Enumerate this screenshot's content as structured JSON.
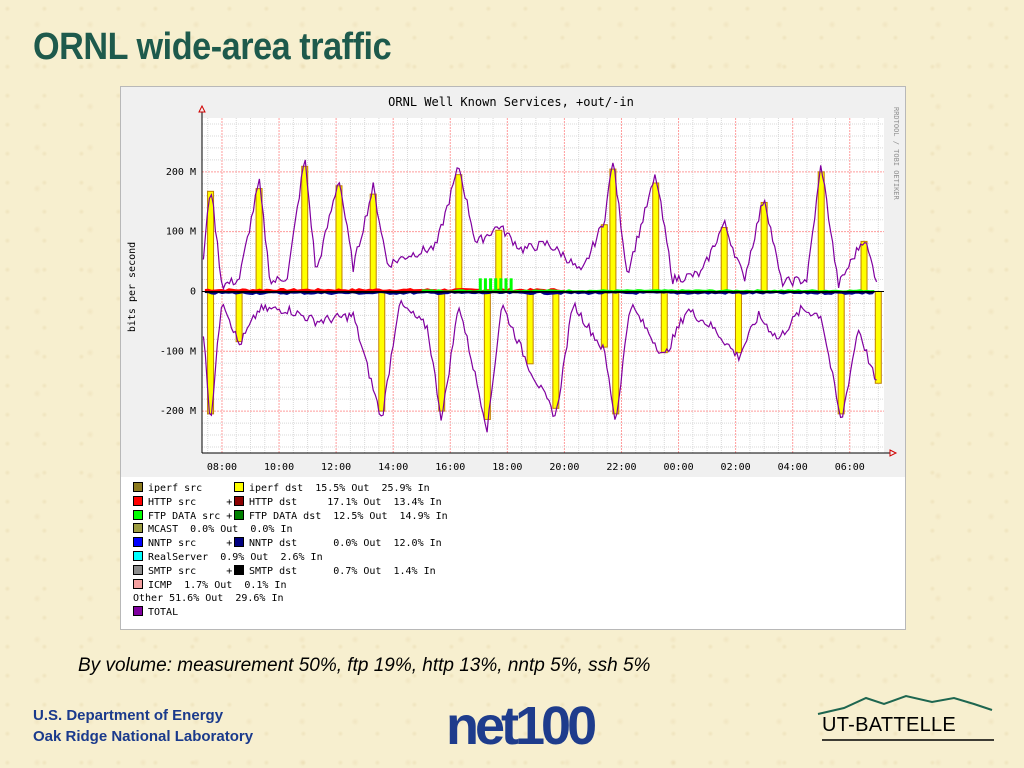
{
  "slide": {
    "title": "ORNL wide-area traffic",
    "caption": "By volume:  measurement 50%, ftp 19%, http 13%, nntp 5%,  ssh 5%",
    "footer_line1": "U.S. Department of Energy",
    "footer_line2": "Oak Ridge National Laboratory",
    "logo_left_text": "net100",
    "logo_right_text": "UT-BATTELLE"
  },
  "chart_data": {
    "type": "area",
    "title": "ORNL Well Known Services, +out/-in",
    "ylabel": "bits per second",
    "side_label": "RRDTOOL / TOBI OETIKER",
    "y_ticks": [
      {
        "v": 200,
        "label": "200 M"
      },
      {
        "v": 100,
        "label": "100 M"
      },
      {
        "v": 0,
        "label": "0"
      },
      {
        "v": -100,
        "label": "-100 M"
      },
      {
        "v": -200,
        "label": "-200 M"
      }
    ],
    "x_ticks": [
      "08:00",
      "10:00",
      "12:00",
      "14:00",
      "16:00",
      "18:00",
      "20:00",
      "22:00",
      "00:00",
      "02:00",
      "04:00",
      "06:00"
    ],
    "ylim": [
      -270,
      290
    ],
    "xlim_hours": [
      7.3,
      31.2
    ],
    "grid": true,
    "colors": {
      "iperf_dst": "#ffff00",
      "iperf_src": "#8c7a1e",
      "http": "#ff0000",
      "ftp": "#00ff00",
      "nntp": "#000090",
      "total": "#8000a0",
      "realserver": "#00ffff",
      "smtp": "#000000",
      "grid_major": "#ff9c9c",
      "grid_minor": "#d8d8d8"
    },
    "total_out_envelope": [
      {
        "t": 7.3,
        "v": 30
      },
      {
        "t": 7.6,
        "v": 180
      },
      {
        "t": 8.0,
        "v": 10
      },
      {
        "t": 8.6,
        "v": 20
      },
      {
        "t": 9.3,
        "v": 185
      },
      {
        "t": 9.7,
        "v": 15
      },
      {
        "t": 10.3,
        "v": 25
      },
      {
        "t": 10.9,
        "v": 225
      },
      {
        "t": 11.3,
        "v": 30
      },
      {
        "t": 12.1,
        "v": 190
      },
      {
        "t": 12.6,
        "v": 40
      },
      {
        "t": 13.3,
        "v": 175
      },
      {
        "t": 13.8,
        "v": 45
      },
      {
        "t": 14.5,
        "v": 60
      },
      {
        "t": 15.5,
        "v": 75
      },
      {
        "t": 16.3,
        "v": 210
      },
      {
        "t": 16.9,
        "v": 80
      },
      {
        "t": 17.7,
        "v": 110
      },
      {
        "t": 18.5,
        "v": 70
      },
      {
        "t": 19.4,
        "v": 80
      },
      {
        "t": 20.0,
        "v": 60
      },
      {
        "t": 20.6,
        "v": 30
      },
      {
        "t": 21.4,
        "v": 120
      },
      {
        "t": 21.7,
        "v": 220
      },
      {
        "t": 22.2,
        "v": 30
      },
      {
        "t": 23.2,
        "v": 195
      },
      {
        "t": 23.8,
        "v": 20
      },
      {
        "t": 24.8,
        "v": 30
      },
      {
        "t": 25.6,
        "v": 115
      },
      {
        "t": 26.3,
        "v": 20
      },
      {
        "t": 27.0,
        "v": 160
      },
      {
        "t": 27.6,
        "v": 15
      },
      {
        "t": 28.5,
        "v": 20
      },
      {
        "t": 29.0,
        "v": 215
      },
      {
        "t": 29.6,
        "v": 10
      },
      {
        "t": 30.5,
        "v": 90
      },
      {
        "t": 31.0,
        "v": 10
      }
    ],
    "total_in_envelope": [
      {
        "t": 7.3,
        "v": -40
      },
      {
        "t": 7.6,
        "v": -220
      },
      {
        "t": 8.0,
        "v": -10
      },
      {
        "t": 8.6,
        "v": -90
      },
      {
        "t": 9.3,
        "v": -30
      },
      {
        "t": 10.3,
        "v": -30
      },
      {
        "t": 11.3,
        "v": -50
      },
      {
        "t": 12.6,
        "v": -40
      },
      {
        "t": 13.6,
        "v": -215
      },
      {
        "t": 14.2,
        "v": -20
      },
      {
        "t": 15.2,
        "v": -60
      },
      {
        "t": 15.7,
        "v": -215
      },
      {
        "t": 16.3,
        "v": -20
      },
      {
        "t": 17.3,
        "v": -230
      },
      {
        "t": 17.8,
        "v": -20
      },
      {
        "t": 18.8,
        "v": -130
      },
      {
        "t": 19.7,
        "v": -210
      },
      {
        "t": 20.3,
        "v": -20
      },
      {
        "t": 21.4,
        "v": -100
      },
      {
        "t": 21.8,
        "v": -220
      },
      {
        "t": 22.3,
        "v": -20
      },
      {
        "t": 23.5,
        "v": -110
      },
      {
        "t": 24.3,
        "v": -30
      },
      {
        "t": 25.2,
        "v": -60
      },
      {
        "t": 26.1,
        "v": -110
      },
      {
        "t": 26.8,
        "v": -40
      },
      {
        "t": 27.5,
        "v": -80
      },
      {
        "t": 28.3,
        "v": -30
      },
      {
        "t": 29.0,
        "v": -40
      },
      {
        "t": 29.7,
        "v": -220
      },
      {
        "t": 30.3,
        "v": -60
      },
      {
        "t": 31.0,
        "v": -165
      }
    ],
    "legend": [
      {
        "swatch": "#8c7a1e",
        "text": "iperf src",
        "swatch2": "#ffff00",
        "text2": "iperf dst  15.5% Out  25.9% In"
      },
      {
        "swatch": "#ff0000",
        "text": "HTTP src     +",
        "swatch2": "#8b0000",
        "text2": "HTTP dst     17.1% Out  13.4% In"
      },
      {
        "swatch": "#00ff00",
        "text": "FTP DATA src +",
        "swatch2": "#008000",
        "text2": "FTP DATA dst  12.5% Out  14.9% In"
      },
      {
        "swatch": "#9c9c40",
        "text": "MCAST  0.0% Out  0.0% In"
      },
      {
        "swatch": "#0000ff",
        "text": "NNTP src     +",
        "swatch2": "#000080",
        "text2": "NNTP dst      0.0% Out  12.0% In"
      },
      {
        "swatch": "#00ffff",
        "text": "RealServer  0.9% Out  2.6% In"
      },
      {
        "swatch": "#8c8c8c",
        "text": "SMTP src     +",
        "swatch2": "#000000",
        "text2": "SMTP dst      0.7% Out  1.4% In"
      },
      {
        "swatch": "#f4a0a0",
        "text": "ICMP  1.7% Out  0.1% In"
      },
      {
        "text": "Other 51.6% Out  29.6% In"
      },
      {
        "swatch": "#8000a0",
        "text": "TOTAL"
      }
    ]
  }
}
